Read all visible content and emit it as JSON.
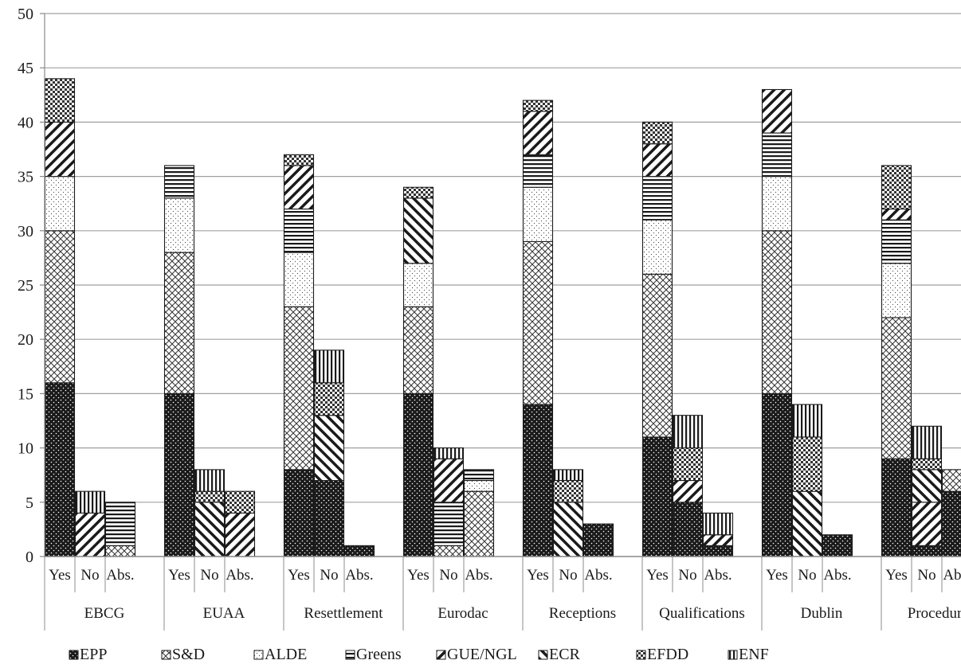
{
  "chart_data": {
    "type": "bar",
    "stacked": true,
    "ylim": [
      0,
      50
    ],
    "y_ticks": [
      0,
      5,
      10,
      15,
      20,
      25,
      30,
      35,
      40,
      45,
      50
    ],
    "grid": true,
    "legend_position": "bottom",
    "series": [
      {
        "name": "EPP",
        "color": "#1a1a1a",
        "pattern": "dots-on-black"
      },
      {
        "name": "S&D",
        "color": "#ffffff",
        "pattern": "cross-hatch"
      },
      {
        "name": "ALDE",
        "color": "#ffffff",
        "pattern": "fine-dots"
      },
      {
        "name": "Greens",
        "color": "#ffffff",
        "pattern": "horizontal-lines"
      },
      {
        "name": "GUE/NGL",
        "color": "#ffffff",
        "pattern": "forward-diagonal"
      },
      {
        "name": "ECR",
        "color": "#ffffff",
        "pattern": "backward-diagonal"
      },
      {
        "name": "EFDD",
        "color": "#ffffff",
        "pattern": "checker"
      },
      {
        "name": "ENF",
        "color": "#ffffff",
        "pattern": "vertical-lines"
      }
    ],
    "subcategories": [
      "Yes",
      "No",
      "Abs."
    ],
    "groups": [
      {
        "label": "EBCG",
        "bars": [
          {
            "label": "Yes",
            "values": [
              16,
              14,
              5,
              0,
              5,
              0,
              4,
              0
            ]
          },
          {
            "label": "No",
            "values": [
              0,
              0,
              0,
              0,
              4,
              0,
              0,
              2
            ]
          },
          {
            "label": "Abs.",
            "values": [
              0,
              1,
              0,
              4,
              0,
              0,
              0,
              0
            ]
          }
        ]
      },
      {
        "label": "EUAA",
        "bars": [
          {
            "label": "Yes",
            "values": [
              15,
              13,
              5,
              3,
              0,
              0,
              0,
              0
            ]
          },
          {
            "label": "No",
            "values": [
              0,
              0,
              0,
              0,
              0,
              5,
              1,
              2
            ]
          },
          {
            "label": "Abs.",
            "values": [
              0,
              0,
              0,
              0,
              4,
              0,
              2,
              0
            ]
          }
        ]
      },
      {
        "label": "Resettlement",
        "bars": [
          {
            "label": "Yes",
            "values": [
              8,
              15,
              5,
              4,
              4,
              0,
              1,
              0
            ]
          },
          {
            "label": "No",
            "values": [
              7,
              0,
              0,
              0,
              0,
              6,
              3,
              3
            ]
          },
          {
            "label": "Abs.",
            "values": [
              1,
              0,
              0,
              0,
              0,
              0,
              0,
              0
            ]
          }
        ]
      },
      {
        "label": "Eurodac",
        "bars": [
          {
            "label": "Yes",
            "values": [
              15,
              8,
              4,
              0,
              0,
              6,
              1,
              0
            ]
          },
          {
            "label": "No",
            "values": [
              0,
              1,
              0,
              4,
              4,
              0,
              0,
              1
            ]
          },
          {
            "label": "Abs.",
            "values": [
              0,
              6,
              1,
              1,
              0,
              0,
              0,
              0
            ]
          }
        ]
      },
      {
        "label": "Receptions",
        "bars": [
          {
            "label": "Yes",
            "values": [
              14,
              15,
              5,
              3,
              4,
              0,
              1,
              0
            ]
          },
          {
            "label": "No",
            "values": [
              0,
              0,
              0,
              0,
              0,
              5,
              2,
              1
            ]
          },
          {
            "label": "Abs.",
            "values": [
              3,
              0,
              0,
              0,
              0,
              0,
              0,
              0
            ]
          }
        ]
      },
      {
        "label": "Qualifications",
        "bars": [
          {
            "label": "Yes",
            "values": [
              11,
              15,
              5,
              4,
              3,
              0,
              2,
              0
            ]
          },
          {
            "label": "No",
            "values": [
              5,
              0,
              0,
              0,
              2,
              0,
              3,
              3
            ]
          },
          {
            "label": "Abs.",
            "values": [
              1,
              0,
              0,
              0,
              1,
              0,
              0,
              2
            ]
          }
        ]
      },
      {
        "label": "Dublin",
        "bars": [
          {
            "label": "Yes",
            "values": [
              15,
              15,
              5,
              4,
              4,
              0,
              0,
              0
            ]
          },
          {
            "label": "No",
            "values": [
              0,
              0,
              0,
              0,
              0,
              6,
              5,
              3
            ]
          },
          {
            "label": "Abs.",
            "values": [
              2,
              0,
              0,
              0,
              0,
              0,
              0,
              0
            ]
          }
        ]
      },
      {
        "label": "Procedures",
        "bars": [
          {
            "label": "Yes",
            "values": [
              9,
              13,
              5,
              4,
              1,
              0,
              4,
              0
            ]
          },
          {
            "label": "No",
            "values": [
              1,
              0,
              0,
              0,
              4,
              3,
              1,
              3
            ]
          },
          {
            "label": "Abs.",
            "values": [
              6,
              2,
              0,
              0,
              0,
              0,
              0,
              0
            ]
          }
        ]
      }
    ]
  }
}
